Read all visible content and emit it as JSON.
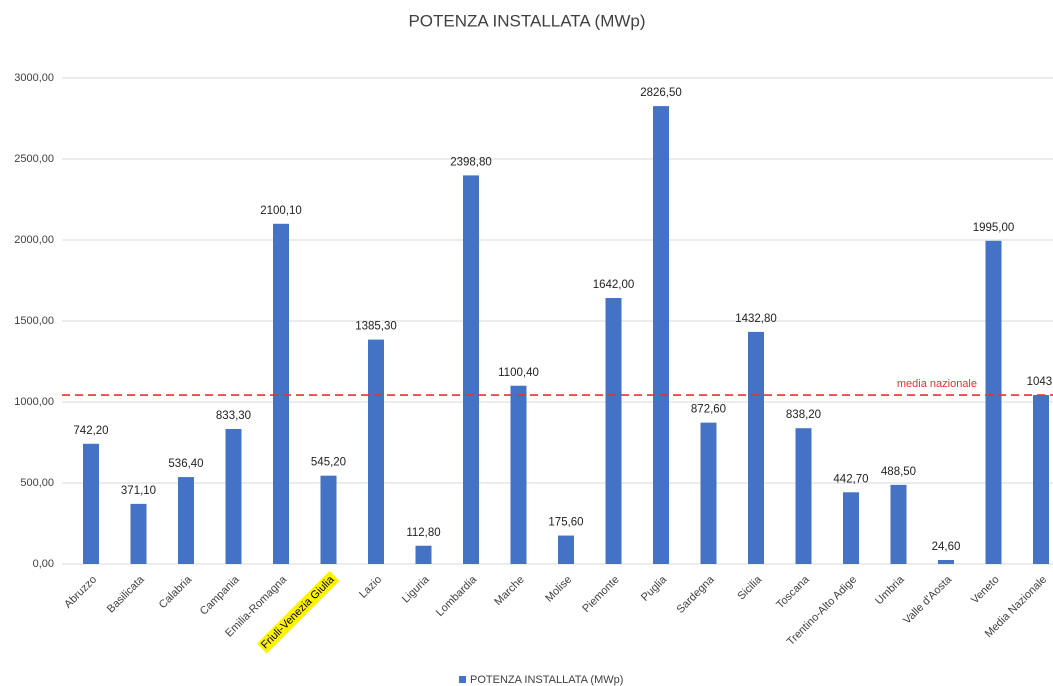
{
  "chart_data": {
    "type": "bar",
    "title": "POTENZA INSTALLATA (MWp)",
    "categories": [
      "Abruzzo",
      "Basilicata",
      "Calabria",
      "Campania",
      "Emilia-Romagna",
      "Friuli-Venezia Giulia",
      "Lazio",
      "Liguria",
      "Lombardia",
      "Marche",
      "Molise",
      "Piemonte",
      "Puglia",
      "Sardegna",
      "Sicilia",
      "Toscana",
      "Trentino-Alto Adige",
      "Umbria",
      "Valle d'Aosta",
      "Veneto",
      "Media Nazionale"
    ],
    "series": [
      {
        "name": "POTENZA INSTALLATA (MWp)",
        "color": "#4472c4",
        "values": [
          742.2,
          371.1,
          536.4,
          833.3,
          2100.1,
          545.2,
          1385.3,
          112.8,
          2398.8,
          1100.4,
          175.6,
          1642.0,
          2826.5,
          872.6,
          1432.8,
          838.2,
          442.7,
          488.5,
          24.6,
          1995.0,
          1043
        ],
        "value_labels": [
          "742,20",
          "371,10",
          "536,40",
          "833,30",
          "2100,10",
          "545,20",
          "1385,30",
          "112,80",
          "2398,80",
          "1100,40",
          "175,60",
          "1642,00",
          "2826,50",
          "872,60",
          "1432,80",
          "838,20",
          "442,70",
          "488,50",
          "24,60",
          "1995,00",
          "1043,"
        ]
      }
    ],
    "ylim": [
      0,
      3000
    ],
    "yticks": [
      {
        "value": 0,
        "label": "0,00"
      },
      {
        "value": 500,
        "label": "500,00"
      },
      {
        "value": 1000,
        "label": "1000,00"
      },
      {
        "value": 1500,
        "label": "1500,00"
      },
      {
        "value": 2000,
        "label": "2000,00"
      },
      {
        "value": 2500,
        "label": "2500,00"
      },
      {
        "value": 3000,
        "label": "3000,00"
      }
    ],
    "grid": true,
    "legend": "bottom",
    "reference_line": {
      "text": "media nazionale",
      "value": 1043,
      "color": "#e8312f"
    },
    "highlight": {
      "category": 5,
      "color": "#fff200"
    }
  }
}
